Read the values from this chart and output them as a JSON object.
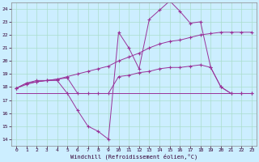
{
  "bg_color": "#cceeff",
  "line_color": "#993399",
  "grid_color": "#aaddcc",
  "xlabel": "Windchill (Refroidissement éolien,°C)",
  "xlim": [
    -0.5,
    23.5
  ],
  "ylim": [
    13.5,
    24.5
  ],
  "yticks": [
    14,
    15,
    16,
    17,
    18,
    19,
    20,
    21,
    22,
    23,
    24
  ],
  "xticks": [
    0,
    1,
    2,
    3,
    4,
    5,
    6,
    7,
    8,
    9,
    10,
    11,
    12,
    13,
    14,
    15,
    16,
    17,
    18,
    19,
    20,
    21,
    22,
    23
  ],
  "line1_x": [
    0,
    1,
    2,
    3,
    4,
    5,
    6,
    7,
    8,
    9,
    10,
    11,
    12,
    13,
    14,
    15,
    16,
    17,
    18,
    19,
    20,
    21,
    22,
    23
  ],
  "line1_y": [
    17.9,
    18.3,
    18.5,
    18.5,
    18.5,
    17.5,
    16.2,
    15.0,
    14.6,
    14.0,
    22.2,
    21.0,
    19.4,
    23.2,
    23.9,
    24.6,
    23.8,
    22.9,
    23.0,
    19.5,
    18.0,
    17.5,
    17.5,
    17.5
  ],
  "line2_x": [
    0,
    1,
    2,
    3,
    4,
    5,
    6,
    7,
    8,
    9,
    10,
    11,
    12,
    13,
    14,
    15,
    16,
    17,
    18,
    19,
    20,
    21,
    22,
    23
  ],
  "line2_y": [
    17.9,
    18.2,
    18.4,
    18.5,
    18.6,
    18.8,
    19.0,
    19.2,
    19.4,
    19.6,
    20.0,
    20.3,
    20.6,
    21.0,
    21.3,
    21.5,
    21.6,
    21.8,
    22.0,
    22.1,
    22.2,
    22.2,
    22.2,
    22.2
  ],
  "line3_x": [
    0,
    1,
    2,
    3,
    4,
    5,
    6,
    7,
    8,
    9,
    10,
    11,
    12,
    13,
    14,
    15,
    16,
    17,
    18,
    19,
    20,
    21,
    22,
    23
  ],
  "line3_y": [
    17.9,
    18.3,
    18.4,
    18.5,
    18.6,
    18.7,
    17.5,
    17.5,
    17.5,
    17.5,
    18.8,
    18.9,
    19.1,
    19.2,
    19.4,
    19.5,
    19.5,
    19.6,
    19.7,
    19.5,
    18.0,
    17.5,
    17.5,
    17.5
  ],
  "line4_x": [
    0,
    23
  ],
  "line4_y": [
    17.5,
    17.5
  ]
}
